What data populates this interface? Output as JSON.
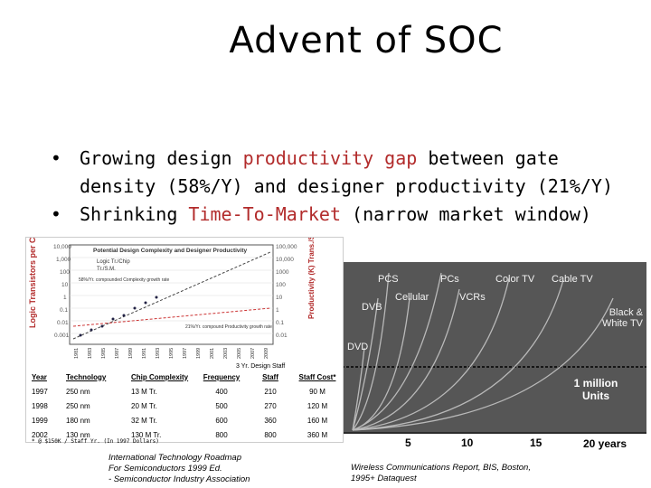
{
  "slide": {
    "title": "Advent of SOC",
    "bullets": [
      {
        "pre": "Growing design ",
        "highlight": "productivity gap",
        "post": " between gate density (58%/Y) and designer productivity (21%/Y)"
      },
      {
        "pre": "Shrinking ",
        "highlight": "Time-To-Market",
        "post": " (narrow market window)"
      }
    ],
    "highlight_color": "#b22b2b"
  },
  "left_figure": {
    "chart_title": "Potential Design Complexity and Designer Productivity",
    "y_left_label": "Logic Transistors per Chip (M)",
    "y_right_label": "Productivity (K) Trans./Staff - Mo.",
    "legend": [
      "Logic Tr./Chip",
      "Tr./S.M."
    ],
    "annotation_top": "58%/Yr. compounded Complexity growth rate",
    "annotation_bottom": "21%/Yr. compound Productivity growth rate",
    "y_left_ticks": [
      "10,000",
      "1,000",
      "100",
      "10",
      "1",
      "0.1",
      "0.01",
      "0.001"
    ],
    "y_right_ticks": [
      "100,000",
      "10,000",
      "1000",
      "100",
      "10",
      "1",
      "0.1",
      "0.01"
    ],
    "x_ticks": [
      "1981",
      "1983",
      "1985",
      "1987",
      "1989",
      "1991",
      "1993",
      "1995",
      "1997",
      "1999",
      "2001",
      "2003",
      "2005",
      "2007",
      "2009"
    ],
    "staff_label": "3 Yr. Design Staff",
    "table_headers": [
      "Year",
      "Technology",
      "Chip Complexity",
      "Frequency",
      "Staff",
      "Staff Cost*"
    ],
    "table_rows": [
      [
        "1997",
        "250 nm",
        "13 M Tr.",
        "400",
        "210",
        "90 M"
      ],
      [
        "1998",
        "250 nm",
        "20 M Tr.",
        "500",
        "270",
        "120 M"
      ],
      [
        "1999",
        "180 nm",
        "32 M Tr.",
        "600",
        "360",
        "160 M"
      ],
      [
        "2002",
        "130 nm",
        "130 M Tr.",
        "800",
        "800",
        "360 M"
      ]
    ],
    "footnote": "* @ $150K / Staff Yr. (In 1997 Dollars)",
    "caption": [
      "International Technology Roadmap",
      "For Semiconductors 1999 Ed.",
      "- Semiconductor Industry Association"
    ]
  },
  "right_figure": {
    "labels": {
      "pcs": "PCS",
      "pcs2": "PCs",
      "color_tv": "Color TV",
      "cable_tv": "Cable TV",
      "cellular": "Cellular",
      "vcrs": "VCRs",
      "dvb": "DVB",
      "bw_tv": "Black & White TV",
      "dvd": "DVD",
      "million": "1 million Units"
    },
    "x_ticks": [
      "5",
      "10",
      "15",
      "20 years"
    ],
    "caption": [
      "Wireless Communications Report, BIS, Boston,",
      "1995+ Dataquest"
    ],
    "bg_color": "#565656"
  }
}
